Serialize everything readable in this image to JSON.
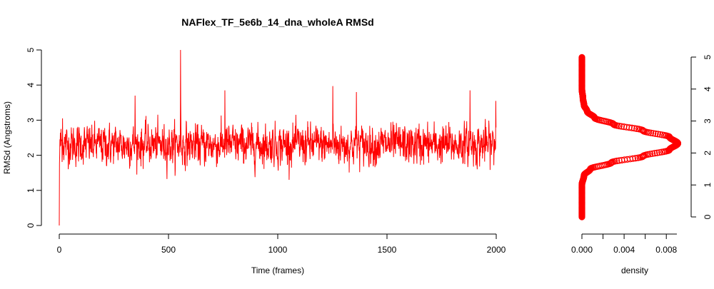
{
  "chart_data": [
    {
      "type": "line",
      "title": "NAFlex_TF_5e6b_14_dna_wholeA RMSd",
      "xlabel": "Time (frames)",
      "ylabel": "RMSd (Angstroms)",
      "xlim": [
        0,
        2000
      ],
      "ylim": [
        0,
        5
      ],
      "x_ticks": [
        0,
        500,
        1000,
        1500,
        2000
      ],
      "y_ticks": [
        0,
        1,
        2,
        3,
        4,
        5
      ],
      "grid": false,
      "series": [
        {
          "color": "#ff0000",
          "n_frames": 2000,
          "distribution": {
            "mean": 2.3,
            "sd": 0.4
          },
          "keypoints": [
            {
              "x": 0,
              "y": 0.0
            },
            {
              "x": 1,
              "y": 1.75
            },
            {
              "x": 8,
              "y": 2.75
            },
            {
              "x": 15,
              "y": 3.05
            },
            {
              "x": 347,
              "y": 3.7
            },
            {
              "x": 555,
              "y": 5.0
            },
            {
              "x": 758,
              "y": 3.85
            },
            {
              "x": 1252,
              "y": 3.97
            },
            {
              "x": 1360,
              "y": 3.8
            },
            {
              "x": 1880,
              "y": 3.85
            },
            {
              "x": 1998,
              "y": 3.55
            }
          ]
        }
      ]
    },
    {
      "type": "area",
      "xlabel": "density",
      "xlim": [
        0,
        0.009
      ],
      "ylim": [
        0,
        5
      ],
      "x_ticks": [
        "0.000",
        "0.004",
        "0.008"
      ],
      "y_ticks": [
        0,
        1,
        2,
        3,
        4,
        5
      ],
      "grid": false,
      "series": [
        {
          "color": "#ff0000",
          "points": [
            {
              "y": 0.0,
              "density": 0.0
            },
            {
              "y": 1.0,
              "density": 0.0
            },
            {
              "y": 1.3,
              "density": 0.0002
            },
            {
              "y": 1.5,
              "density": 0.0008
            },
            {
              "y": 1.7,
              "density": 0.0028
            },
            {
              "y": 1.9,
              "density": 0.0058
            },
            {
              "y": 2.1,
              "density": 0.0083
            },
            {
              "y": 2.3,
              "density": 0.0091
            },
            {
              "y": 2.5,
              "density": 0.0083
            },
            {
              "y": 2.7,
              "density": 0.0058
            },
            {
              "y": 2.9,
              "density": 0.003
            },
            {
              "y": 3.1,
              "density": 0.0012
            },
            {
              "y": 3.3,
              "density": 0.0005
            },
            {
              "y": 3.5,
              "density": 0.0002
            },
            {
              "y": 3.7,
              "density": 0.0001
            },
            {
              "y": 4.0,
              "density": 0.0
            },
            {
              "y": 5.0,
              "density": 0.0
            }
          ]
        }
      ]
    }
  ]
}
